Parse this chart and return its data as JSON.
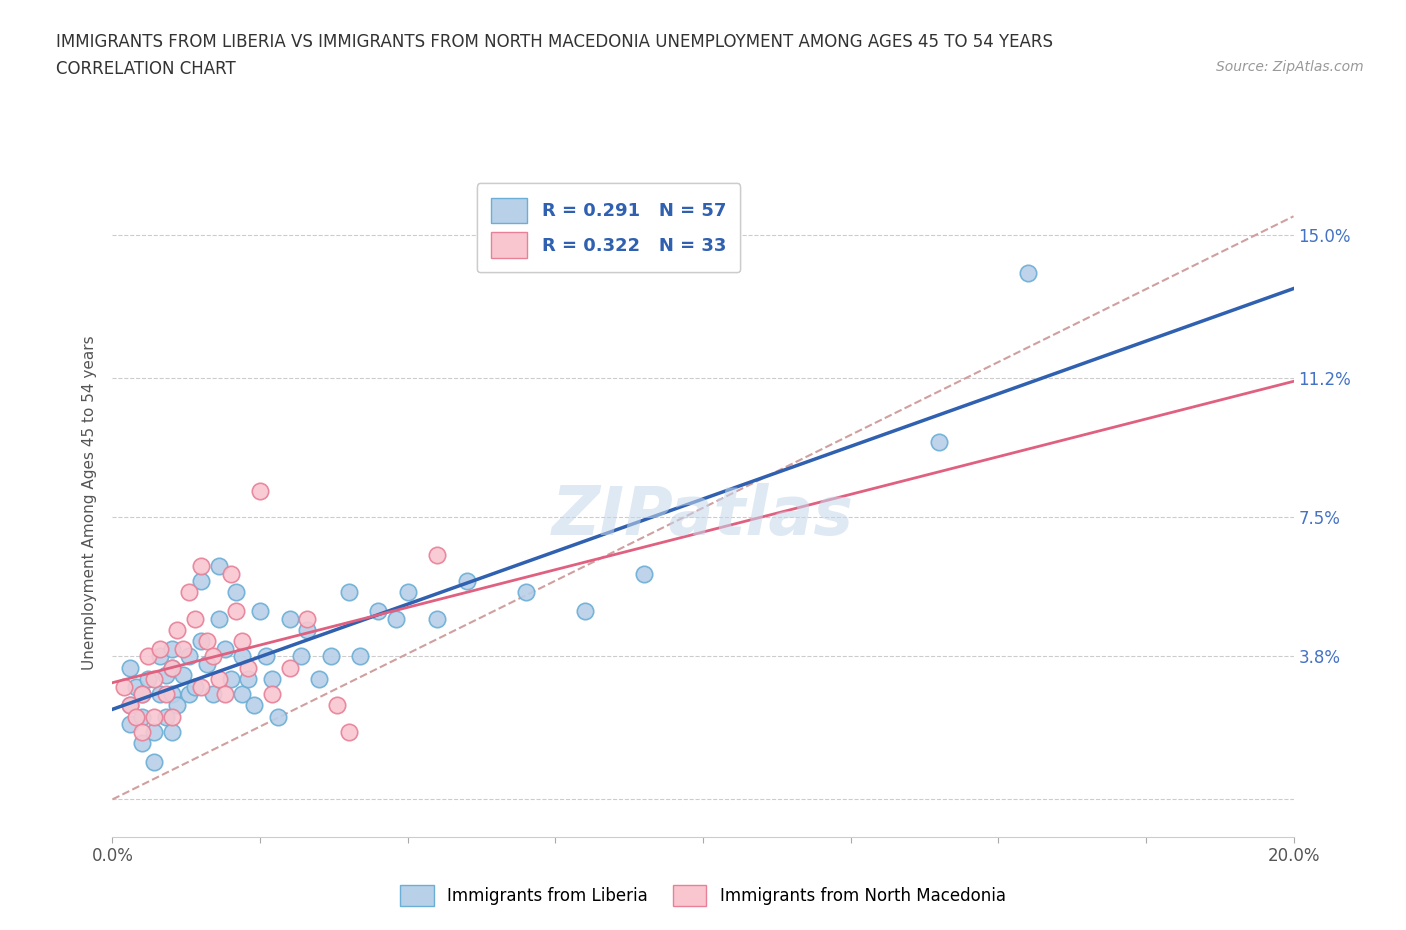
{
  "title_line1": "IMMIGRANTS FROM LIBERIA VS IMMIGRANTS FROM NORTH MACEDONIA UNEMPLOYMENT AMONG AGES 45 TO 54 YEARS",
  "title_line2": "CORRELATION CHART",
  "source": "Source: ZipAtlas.com",
  "ylabel": "Unemployment Among Ages 45 to 54 years",
  "xmin": 0.0,
  "xmax": 0.2,
  "ymin": -0.01,
  "ymax": 0.168,
  "yticks": [
    0.0,
    0.038,
    0.075,
    0.112,
    0.15
  ],
  "ytick_labels": [
    "",
    "3.8%",
    "7.5%",
    "11.2%",
    "15.0%"
  ],
  "xticks": [
    0.0,
    0.025,
    0.05,
    0.075,
    0.1,
    0.125,
    0.15,
    0.175,
    0.2
  ],
  "liberia_R": 0.291,
  "liberia_N": 57,
  "macedonia_R": 0.322,
  "macedonia_N": 33,
  "liberia_color": "#b8d0e8",
  "liberia_edge_color": "#6baed6",
  "macedonia_color": "#f9c6d0",
  "macedonia_edge_color": "#e88098",
  "liberia_line_color": "#3060b0",
  "macedonia_line_color": "#e06080",
  "trend_line_color": "#d0a0a0",
  "watermark": "ZIPatlas",
  "liberia_x": [
    0.003,
    0.003,
    0.003,
    0.004,
    0.005,
    0.005,
    0.005,
    0.006,
    0.007,
    0.007,
    0.008,
    0.008,
    0.009,
    0.009,
    0.01,
    0.01,
    0.01,
    0.01,
    0.011,
    0.012,
    0.013,
    0.013,
    0.014,
    0.015,
    0.015,
    0.016,
    0.017,
    0.018,
    0.018,
    0.019,
    0.02,
    0.021,
    0.022,
    0.022,
    0.023,
    0.024,
    0.025,
    0.026,
    0.027,
    0.028,
    0.03,
    0.032,
    0.033,
    0.035,
    0.037,
    0.04,
    0.042,
    0.045,
    0.048,
    0.05,
    0.055,
    0.06,
    0.07,
    0.08,
    0.09,
    0.14,
    0.155
  ],
  "liberia_y": [
    0.035,
    0.025,
    0.02,
    0.03,
    0.028,
    0.022,
    0.015,
    0.032,
    0.018,
    0.01,
    0.038,
    0.028,
    0.033,
    0.022,
    0.04,
    0.035,
    0.028,
    0.018,
    0.025,
    0.033,
    0.038,
    0.028,
    0.03,
    0.058,
    0.042,
    0.036,
    0.028,
    0.062,
    0.048,
    0.04,
    0.032,
    0.055,
    0.038,
    0.028,
    0.032,
    0.025,
    0.05,
    0.038,
    0.032,
    0.022,
    0.048,
    0.038,
    0.045,
    0.032,
    0.038,
    0.055,
    0.038,
    0.05,
    0.048,
    0.055,
    0.048,
    0.058,
    0.055,
    0.05,
    0.06,
    0.095,
    0.14
  ],
  "macedonia_x": [
    0.002,
    0.003,
    0.004,
    0.005,
    0.005,
    0.006,
    0.007,
    0.007,
    0.008,
    0.009,
    0.01,
    0.01,
    0.011,
    0.012,
    0.013,
    0.014,
    0.015,
    0.015,
    0.016,
    0.017,
    0.018,
    0.019,
    0.02,
    0.021,
    0.022,
    0.023,
    0.025,
    0.027,
    0.03,
    0.033,
    0.038,
    0.04,
    0.055
  ],
  "macedonia_y": [
    0.03,
    0.025,
    0.022,
    0.028,
    0.018,
    0.038,
    0.032,
    0.022,
    0.04,
    0.028,
    0.035,
    0.022,
    0.045,
    0.04,
    0.055,
    0.048,
    0.062,
    0.03,
    0.042,
    0.038,
    0.032,
    0.028,
    0.06,
    0.05,
    0.042,
    0.035,
    0.082,
    0.028,
    0.035,
    0.048,
    0.025,
    0.018,
    0.065
  ]
}
